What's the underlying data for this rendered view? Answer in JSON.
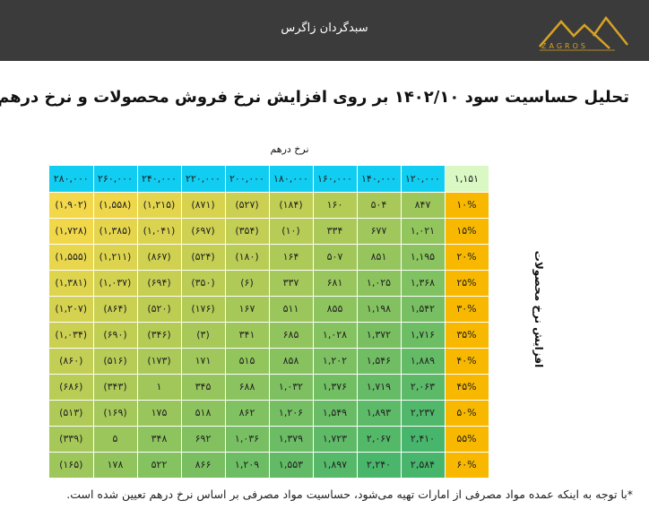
{
  "header": {
    "brand_title": "سبدگردان زاگرس",
    "logo_text": "ZAGROS"
  },
  "title": "تحلیل حساسیت سود ۱۴۰۲/۱۰ بر روی افزایش نرخ فروش محصولات و نرخ درهم",
  "x_axis_label": "نرخ درهم",
  "y_axis_label": "افزایش نرخ محصولات",
  "table": {
    "corner": "۱,۱۵۱",
    "columns": [
      "۱۲۰,۰۰۰",
      "۱۴۰,۰۰۰",
      "۱۶۰,۰۰۰",
      "۱۸۰,۰۰۰",
      "۲۰۰,۰۰۰",
      "۲۲۰,۰۰۰",
      "۲۴۰,۰۰۰",
      "۲۶۰,۰۰۰",
      "۲۸۰,۰۰۰"
    ],
    "rows": [
      {
        "label": "۱۰%",
        "values": [
          "۸۴۷",
          "۵۰۴",
          "۱۶۰",
          "(۱۸۴)",
          "(۵۲۷)",
          "(۸۷۱)",
          "(۱,۲۱۵)",
          "(۱,۵۵۸)",
          "(۱,۹۰۲)"
        ]
      },
      {
        "label": "۱۵%",
        "values": [
          "۱,۰۲۱",
          "۶۷۷",
          "۳۳۴",
          "(۱۰)",
          "(۳۵۴)",
          "(۶۹۷)",
          "(۱,۰۴۱)",
          "(۱,۳۸۵)",
          "(۱,۷۲۸)"
        ]
      },
      {
        "label": "۲۰%",
        "values": [
          "۱,۱۹۵",
          "۸۵۱",
          "۵۰۷",
          "۱۶۴",
          "(۱۸۰)",
          "(۵۲۴)",
          "(۸۶۷)",
          "(۱,۲۱۱)",
          "(۱,۵۵۵)"
        ]
      },
      {
        "label": "۲۵%",
        "values": [
          "۱,۳۶۸",
          "۱,۰۲۵",
          "۶۸۱",
          "۳۳۷",
          "(۶)",
          "(۳۵۰)",
          "(۶۹۴)",
          "(۱,۰۳۷)",
          "(۱,۳۸۱)"
        ]
      },
      {
        "label": "۳۰%",
        "values": [
          "۱,۵۴۲",
          "۱,۱۹۸",
          "۸۵۵",
          "۵۱۱",
          "۱۶۷",
          "(۱۷۶)",
          "(۵۲۰)",
          "(۸۶۴)",
          "(۱,۲۰۷)"
        ]
      },
      {
        "label": "۳۵%",
        "values": [
          "۱,۷۱۶",
          "۱,۳۷۲",
          "۱,۰۲۸",
          "۶۸۵",
          "۳۴۱",
          "(۳)",
          "(۳۴۶)",
          "(۶۹۰)",
          "(۱,۰۳۴)"
        ]
      },
      {
        "label": "۴۰%",
        "values": [
          "۱,۸۸۹",
          "۱,۵۴۶",
          "۱,۲۰۲",
          "۸۵۸",
          "۵۱۵",
          "۱۷۱",
          "(۱۷۳)",
          "(۵۱۶)",
          "(۸۶۰)"
        ]
      },
      {
        "label": "۴۵%",
        "values": [
          "۲,۰۶۳",
          "۱,۷۱۹",
          "۱,۳۷۶",
          "۱,۰۳۲",
          "۶۸۸",
          "۳۴۵",
          "۱",
          "(۳۴۳)",
          "(۶۸۶)"
        ]
      },
      {
        "label": "۵۰%",
        "values": [
          "۲,۲۳۷",
          "۱,۸۹۳",
          "۱,۵۴۹",
          "۱,۲۰۶",
          "۸۶۲",
          "۵۱۸",
          "۱۷۵",
          "(۱۶۹)",
          "(۵۱۳)"
        ]
      },
      {
        "label": "۵۵%",
        "values": [
          "۲,۴۱۰",
          "۲,۰۶۷",
          "۱,۷۲۳",
          "۱,۳۷۹",
          "۱,۰۳۶",
          "۶۹۲",
          "۳۴۸",
          "۵",
          "(۳۳۹)"
        ]
      },
      {
        "label": "۶۰%",
        "values": [
          "۲,۵۸۴",
          "۲,۲۴۰",
          "۱,۸۹۷",
          "۱,۵۵۳",
          "۱,۲۰۹",
          "۸۶۶",
          "۵۲۲",
          "۱۷۸",
          "(۱۶۵)"
        ]
      }
    ]
  },
  "footnote": "*با توجه به اینکه عمده مواد مصرفی از امارات تهیه می‌شود، حساسیت مواد مصرفی بر اساس نرخ درهم تعیین شده است.",
  "colors": {
    "topbar": "#3b3b3b",
    "header_cyan": "#12cdf2",
    "row_header_orange": "#f8b800",
    "corner": "#d9f8c4",
    "heat_low": "#f2d84a",
    "heat_high": "#47b56c"
  }
}
